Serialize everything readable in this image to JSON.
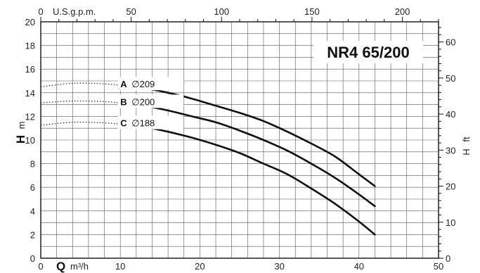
{
  "chart_data": {
    "type": "line",
    "title": "NR4 65/200",
    "x_axis": {
      "symbol": "Q",
      "unit": "m³/h",
      "range": [
        0,
        50
      ],
      "ticks": [
        0,
        10,
        20,
        30,
        40,
        50
      ],
      "minor_step": 2
    },
    "x2_axis": {
      "unit": "U.S.g.p.m.",
      "range_gpm": [
        0,
        220
      ],
      "ticks": [
        0,
        50,
        100,
        150,
        200
      ],
      "minor_step": 10
    },
    "y_axis": {
      "symbol": "H",
      "unit": "m",
      "range": [
        0,
        20
      ],
      "ticks": [
        0,
        2,
        4,
        6,
        8,
        10,
        12,
        14,
        16,
        18,
        20
      ],
      "minor_step": 1
    },
    "y2_axis": {
      "symbol": "H",
      "unit": "ft",
      "range_ft": [
        0,
        65.6
      ],
      "ticks": [
        0,
        10,
        20,
        30,
        40,
        50,
        60
      ],
      "minor_step": 2
    },
    "grid": true,
    "series": [
      {
        "name": "A",
        "diameter": "∅209",
        "x": [
          10.5,
          13,
          16,
          19,
          22,
          25,
          28,
          31,
          34,
          37,
          40,
          42
        ],
        "y": [
          14.6,
          14.4,
          14.0,
          13.5,
          12.9,
          12.3,
          11.6,
          10.7,
          9.7,
          8.6,
          7.1,
          6.1
        ],
        "dotted_extension": {
          "x": [
            0,
            4,
            8,
            10.5
          ],
          "y": [
            14.5,
            14.8,
            14.75,
            14.6
          ]
        }
      },
      {
        "name": "B",
        "diameter": "∅200",
        "x": [
          10.5,
          13,
          16,
          19,
          22,
          25,
          28,
          31,
          34,
          37,
          40,
          42
        ],
        "y": [
          13.1,
          12.9,
          12.5,
          12.0,
          11.5,
          10.8,
          10.0,
          9.1,
          8.0,
          6.8,
          5.4,
          4.4
        ],
        "dotted_extension": {
          "x": [
            0,
            4,
            8,
            10.5
          ],
          "y": [
            13.15,
            13.3,
            13.25,
            13.1
          ]
        }
      },
      {
        "name": "C",
        "diameter": "∅188",
        "x": [
          10.5,
          13,
          16,
          19,
          22,
          25,
          28,
          31,
          34,
          37,
          40,
          42
        ],
        "y": [
          11.3,
          11.1,
          10.7,
          10.2,
          9.6,
          8.9,
          8.0,
          7.1,
          5.9,
          4.6,
          3.1,
          2.0
        ],
        "dotted_extension": {
          "x": [
            0,
            4,
            8,
            10.5
          ],
          "y": [
            11.25,
            11.5,
            11.45,
            11.3
          ]
        }
      }
    ]
  }
}
